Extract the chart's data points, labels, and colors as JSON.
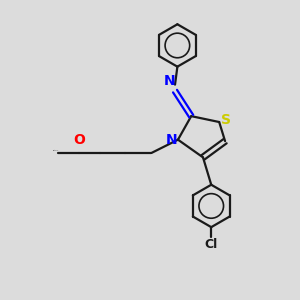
{
  "bg_color": "#dcdcdc",
  "bond_color": "#1a1a1a",
  "bond_width": 1.6,
  "atom_colors": {
    "N": "#0000ff",
    "O": "#ff0000",
    "S": "#cccc00",
    "Cl": "#1a1a1a"
  },
  "figsize": [
    3.0,
    3.0
  ],
  "dpi": 100
}
